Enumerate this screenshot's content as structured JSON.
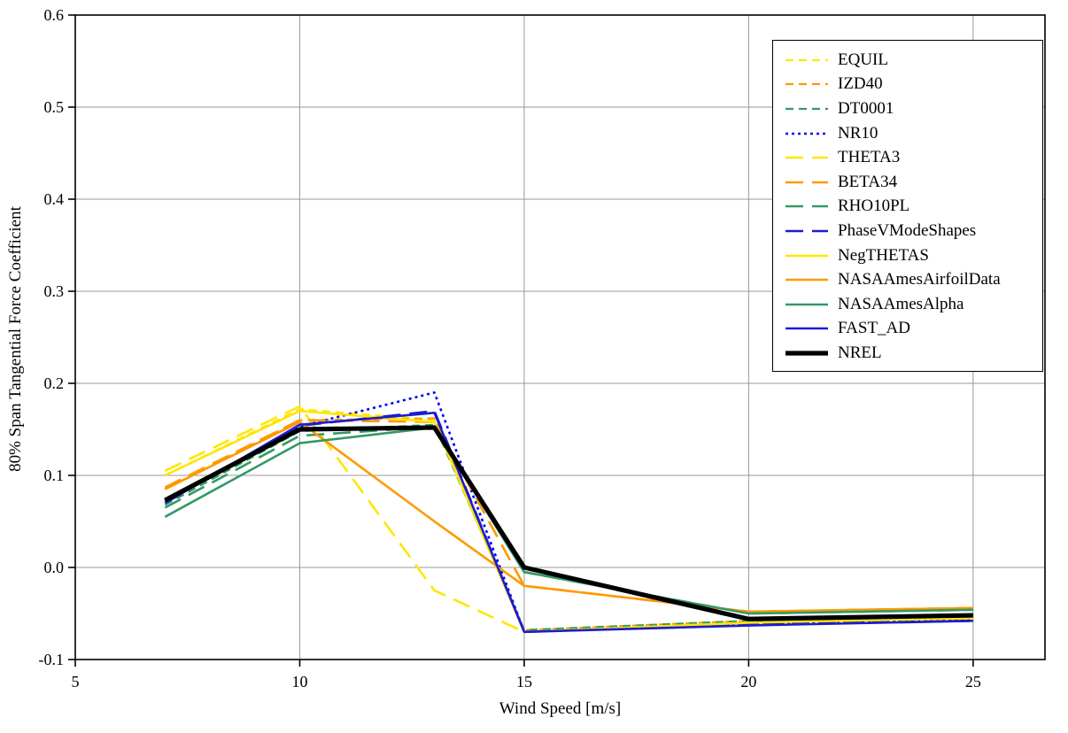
{
  "chart_data": {
    "type": "line",
    "title": "",
    "xlabel": "Wind Speed [m/s]",
    "ylabel": "80% Span Tangential Force Coefficient",
    "xlim": [
      5,
      26.6
    ],
    "ylim": [
      -0.1,
      0.6
    ],
    "grid": true,
    "legend_position": "top-right",
    "xticks": [
      {
        "v": 5,
        "label": "5"
      },
      {
        "v": 10,
        "label": "10"
      },
      {
        "v": 15,
        "label": "15"
      },
      {
        "v": 20,
        "label": "20"
      },
      {
        "v": 25,
        "label": "25"
      }
    ],
    "yticks": [
      {
        "v": 0.6,
        "label": "0.6"
      },
      {
        "v": 0.5,
        "label": "0.5"
      },
      {
        "v": 0.4,
        "label": "0.4"
      },
      {
        "v": 0.3,
        "label": "0.3"
      },
      {
        "v": 0.2,
        "label": "0.2"
      },
      {
        "v": 0.1,
        "label": "0.1"
      },
      {
        "v": 0.0,
        "label": "0.0"
      },
      {
        "v": -0.1,
        "label": "-0.1"
      }
    ],
    "x": [
      7,
      10,
      13,
      15,
      20,
      25
    ],
    "series": [
      {
        "label": "EQUIL",
        "color": "#FFE600",
        "dash": "short",
        "width": 2.2,
        "values": [
          0.1,
          0.172,
          0.16,
          -0.068,
          -0.058,
          -0.051
        ]
      },
      {
        "label": "IZD40",
        "color": "#FF9900",
        "dash": "short",
        "width": 2.2,
        "values": [
          0.085,
          0.16,
          0.162,
          -0.068,
          -0.058,
          -0.052
        ]
      },
      {
        "label": "DT0001",
        "color": "#339966",
        "dash": "short",
        "width": 2.2,
        "values": [
          0.068,
          0.148,
          0.155,
          -0.068,
          -0.058,
          -0.052
        ]
      },
      {
        "label": "NR10",
        "color": "#0000FF",
        "dash": "dot",
        "width": 2.6,
        "values": [
          0.072,
          0.153,
          0.19,
          -0.07,
          -0.062,
          -0.057
        ]
      },
      {
        "label": "THETA3",
        "color": "#FFE600",
        "dash": "long",
        "width": 2.6,
        "values": [
          0.105,
          0.175,
          -0.025,
          -0.07,
          -0.06,
          -0.055
        ]
      },
      {
        "label": "BETA34",
        "color": "#FF9900",
        "dash": "long",
        "width": 2.6,
        "values": [
          0.087,
          0.16,
          0.158,
          -0.02,
          -0.048,
          -0.044
        ]
      },
      {
        "label": "RHO10PL",
        "color": "#339966",
        "dash": "long",
        "width": 2.6,
        "values": [
          0.065,
          0.143,
          0.153,
          -0.005,
          -0.05,
          -0.046
        ]
      },
      {
        "label": "PhaseVModeShapes",
        "color": "#1C1CD0",
        "dash": "long",
        "width": 2.6,
        "values": [
          0.07,
          0.154,
          0.17,
          -0.07,
          -0.062,
          -0.058
        ]
      },
      {
        "label": "NegTHETAS",
        "color": "#FFE600",
        "dash": "solid",
        "width": 2.6,
        "values": [
          0.1,
          0.17,
          0.158,
          -0.07,
          -0.06,
          -0.055
        ]
      },
      {
        "label": "NASAAmesAirfoilData",
        "color": "#FF9900",
        "dash": "solid",
        "width": 2.6,
        "values": [
          0.085,
          0.158,
          0.05,
          -0.02,
          -0.048,
          -0.044
        ]
      },
      {
        "label": "NASAAmesAlpha",
        "color": "#339966",
        "dash": "solid",
        "width": 2.6,
        "values": [
          0.055,
          0.135,
          0.152,
          -0.005,
          -0.05,
          -0.046
        ]
      },
      {
        "label": "FAST_AD",
        "color": "#1C1CD0",
        "dash": "solid",
        "width": 2.6,
        "values": [
          0.07,
          0.155,
          0.168,
          -0.07,
          -0.063,
          -0.058
        ]
      },
      {
        "label": "NREL",
        "color": "#000000",
        "dash": "solid",
        "width": 5.2,
        "values": [
          0.073,
          0.15,
          0.152,
          0.0,
          -0.056,
          -0.052
        ]
      }
    ],
    "colors": {
      "gridline": "#999999",
      "axis": "#000000",
      "background": "#ffffff"
    }
  }
}
